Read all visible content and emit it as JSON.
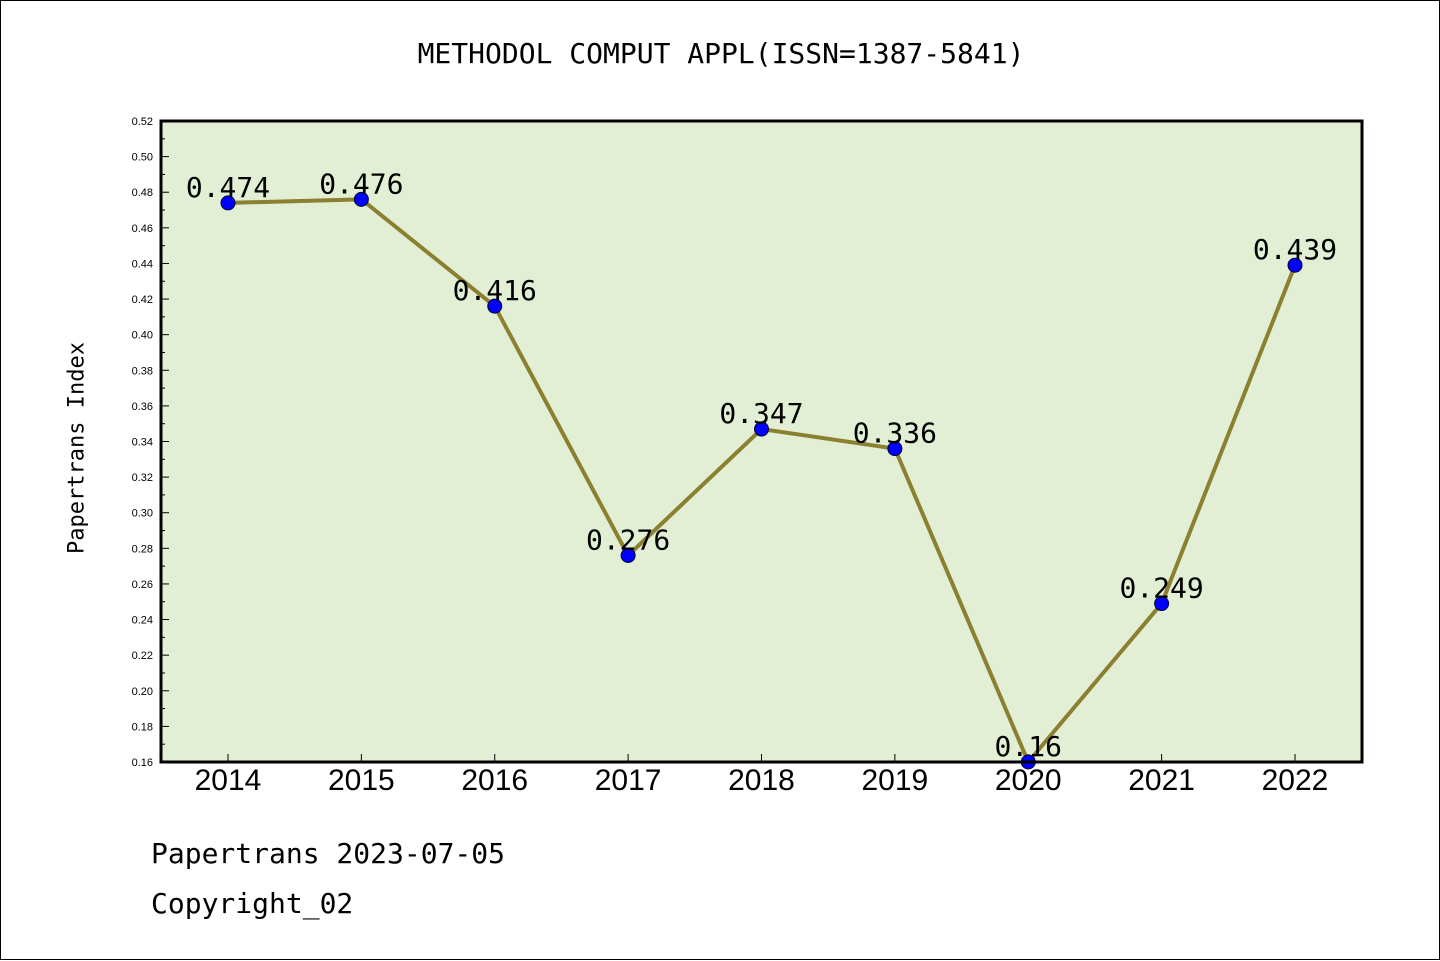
{
  "chart_data": {
    "type": "line",
    "title": "METHODOL COMPUT APPL(ISSN=1387-5841)",
    "xlabel": "",
    "ylabel": "Papertrans Index",
    "categories": [
      "2014",
      "2015",
      "2016",
      "2017",
      "2018",
      "2019",
      "2020",
      "2021",
      "2022"
    ],
    "series": [
      {
        "values": [
          0.474,
          0.476,
          0.416,
          0.276,
          0.347,
          0.336,
          0.16,
          0.249,
          0.439
        ],
        "labels": [
          "0.474",
          "0.476",
          "0.416",
          "0.276",
          "0.347",
          "0.336",
          "0.16",
          "0.249",
          "0.439"
        ],
        "line_color": "#8b8030",
        "marker_color": "#0000ff"
      }
    ],
    "ylim": [
      0.16,
      0.52
    ],
    "y_ticks": [
      "0.16",
      "0.18",
      "0.20",
      "0.22",
      "0.24",
      "0.26",
      "0.28",
      "0.30",
      "0.32",
      "0.34",
      "0.36",
      "0.38",
      "0.40",
      "0.42",
      "0.44",
      "0.46",
      "0.48",
      "0.50",
      "0.52"
    ],
    "plot_background": "#e2efd5",
    "grid": false,
    "legend": "none"
  },
  "footer": {
    "date_line": "Papertrans 2023-07-05",
    "copyright_line": "Copyright_02"
  }
}
